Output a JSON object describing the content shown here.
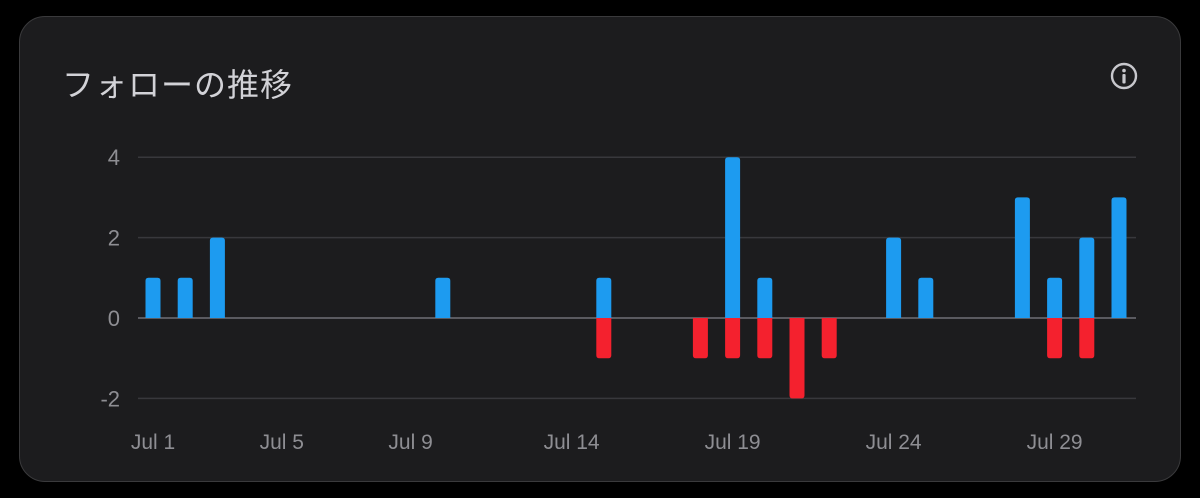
{
  "card": {
    "title": "フォローの推移",
    "info_icon": "info-circle-icon"
  },
  "colors": {
    "positive": "#1d9bf0",
    "negative": "#f4212e",
    "grid": "#38383c",
    "zero": "#5a5a60"
  },
  "chart_data": {
    "type": "bar",
    "title": "フォローの推移",
    "xlabel": "",
    "ylabel": "",
    "ylim": [
      -2,
      4
    ],
    "yticks": [
      4,
      2,
      0,
      -2
    ],
    "grid": true,
    "x_ticks": [
      "Jul 1",
      "Jul 5",
      "Jul 9",
      "Jul 14",
      "Jul 19",
      "Jul 24",
      "Jul 29"
    ],
    "x_tick_days": [
      1,
      5,
      9,
      14,
      19,
      24,
      29
    ],
    "categories": [
      "Jul 1",
      "Jul 2",
      "Jul 3",
      "Jul 4",
      "Jul 5",
      "Jul 6",
      "Jul 7",
      "Jul 8",
      "Jul 9",
      "Jul 10",
      "Jul 11",
      "Jul 12",
      "Jul 13",
      "Jul 14",
      "Jul 15",
      "Jul 16",
      "Jul 17",
      "Jul 18",
      "Jul 19",
      "Jul 20",
      "Jul 21",
      "Jul 22",
      "Jul 23",
      "Jul 24",
      "Jul 25",
      "Jul 26",
      "Jul 27",
      "Jul 28",
      "Jul 29",
      "Jul 30",
      "Jul 31"
    ],
    "series": [
      {
        "values": [
          1,
          1,
          2,
          0,
          0,
          0,
          0,
          0,
          0,
          1,
          0,
          0,
          0,
          0,
          1,
          0,
          0,
          0,
          4,
          1,
          0,
          0,
          0,
          2,
          1,
          0,
          0,
          3,
          1,
          2,
          3
        ]
      },
      {
        "values": [
          0,
          0,
          0,
          0,
          0,
          0,
          0,
          0,
          0,
          0,
          0,
          0,
          0,
          0,
          -1,
          0,
          0,
          -1,
          -1,
          -1,
          -2,
          -1,
          0,
          0,
          0,
          0,
          0,
          0,
          -1,
          -1,
          0
        ]
      }
    ]
  }
}
